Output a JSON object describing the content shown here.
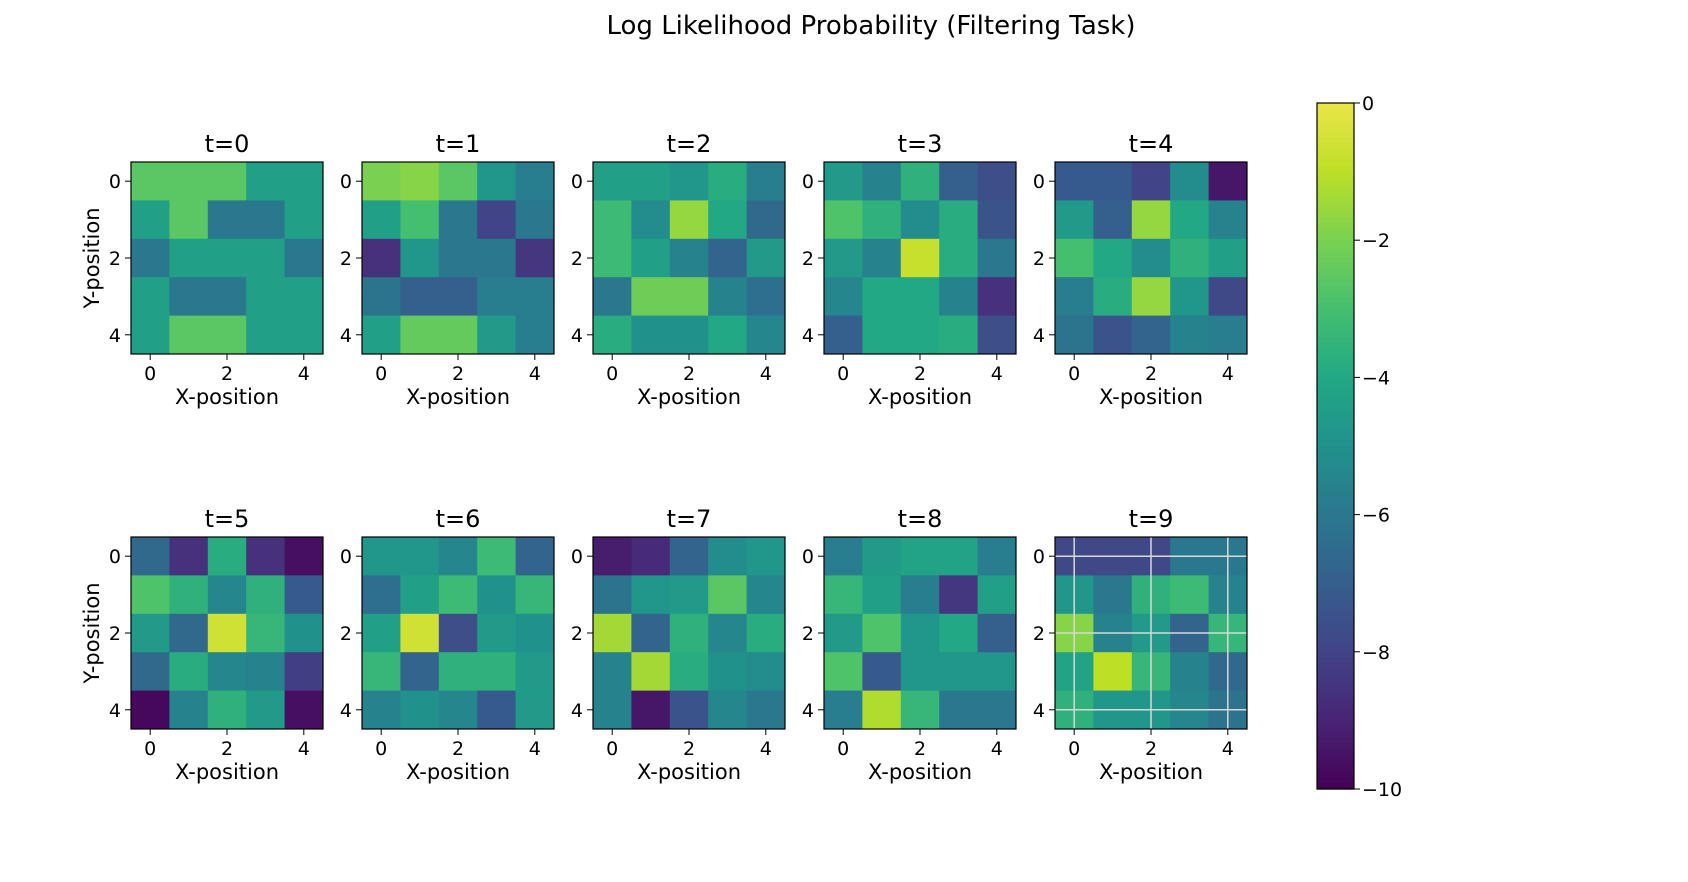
{
  "chart_data": {
    "type": "heatmap",
    "title": "Log Likelihood Probability (Filtering Task)",
    "xlabel": "X-position",
    "ylabel": "Y-position",
    "grid_shape": [
      5,
      5
    ],
    "x_ticks": [
      "0",
      "2",
      "4"
    ],
    "y_ticks": [
      "0",
      "2",
      "4"
    ],
    "colormap": "viridis",
    "vmin": -10,
    "vmax": 0,
    "colorbar_ticks": [
      0,
      -2,
      -4,
      -6,
      -8,
      -10
    ],
    "colorbar_tick_labels": [
      "0",
      "−2",
      "−4",
      "−6",
      "−8",
      "−10"
    ],
    "panels": [
      {
        "label": "t=0",
        "values": [
          [
            -2.6,
            -2.6,
            -2.6,
            -4.4,
            -4.4
          ],
          [
            -4.4,
            -2.6,
            -6.0,
            -6.0,
            -4.4
          ],
          [
            -6.0,
            -4.4,
            -4.4,
            -4.4,
            -6.0
          ],
          [
            -4.4,
            -6.0,
            -6.0,
            -4.4,
            -4.4
          ],
          [
            -4.4,
            -2.6,
            -2.6,
            -4.4,
            -4.4
          ]
        ]
      },
      {
        "label": "t=1",
        "values": [
          [
            -2.0,
            -1.8,
            -2.6,
            -4.8,
            -5.8
          ],
          [
            -4.4,
            -3.0,
            -6.0,
            -8.0,
            -6.0
          ],
          [
            -8.6,
            -4.8,
            -6.0,
            -6.0,
            -8.4
          ],
          [
            -6.2,
            -7.0,
            -7.0,
            -5.8,
            -5.8
          ],
          [
            -4.4,
            -2.4,
            -2.4,
            -4.6,
            -5.8
          ]
        ]
      },
      {
        "label": "t=2",
        "values": [
          [
            -4.4,
            -4.4,
            -4.8,
            -3.8,
            -5.8
          ],
          [
            -3.2,
            -5.2,
            -1.6,
            -4.0,
            -6.6
          ],
          [
            -3.2,
            -4.4,
            -5.6,
            -6.8,
            -4.6
          ],
          [
            -6.0,
            -2.2,
            -2.2,
            -5.6,
            -6.4
          ],
          [
            -3.8,
            -5.0,
            -5.0,
            -4.0,
            -5.4
          ]
        ]
      },
      {
        "label": "t=3",
        "values": [
          [
            -4.6,
            -5.6,
            -3.6,
            -7.0,
            -7.6
          ],
          [
            -2.8,
            -3.6,
            -5.2,
            -3.8,
            -7.4
          ],
          [
            -4.6,
            -5.6,
            -0.8,
            -3.8,
            -6.0
          ],
          [
            -5.4,
            -4.0,
            -4.0,
            -5.6,
            -8.6
          ],
          [
            -7.0,
            -4.0,
            -4.0,
            -3.8,
            -7.6
          ]
        ]
      },
      {
        "label": "t=4",
        "values": [
          [
            -7.2,
            -7.2,
            -8.0,
            -5.2,
            -9.4
          ],
          [
            -4.6,
            -7.0,
            -1.6,
            -4.0,
            -5.6
          ],
          [
            -3.0,
            -4.0,
            -5.2,
            -3.6,
            -4.4
          ],
          [
            -5.8,
            -3.8,
            -1.6,
            -4.8,
            -7.8
          ],
          [
            -6.2,
            -7.4,
            -6.8,
            -5.6,
            -5.8
          ]
        ]
      },
      {
        "label": "t=5",
        "values": [
          [
            -6.6,
            -8.6,
            -3.8,
            -8.6,
            -9.6
          ],
          [
            -2.8,
            -3.6,
            -5.4,
            -3.6,
            -7.2
          ],
          [
            -4.6,
            -6.6,
            -0.6,
            -3.4,
            -5.0
          ],
          [
            -6.6,
            -3.8,
            -5.4,
            -5.6,
            -8.2
          ],
          [
            -9.8,
            -5.6,
            -3.6,
            -4.6,
            -9.6
          ]
        ]
      },
      {
        "label": "t=6",
        "values": [
          [
            -4.8,
            -4.8,
            -5.4,
            -3.2,
            -6.8
          ],
          [
            -6.4,
            -4.4,
            -3.2,
            -5.0,
            -3.4
          ],
          [
            -4.4,
            -0.6,
            -7.6,
            -4.6,
            -5.0
          ],
          [
            -3.4,
            -6.8,
            -3.6,
            -3.6,
            -4.6
          ],
          [
            -5.6,
            -5.0,
            -5.4,
            -7.2,
            -4.6
          ]
        ]
      },
      {
        "label": "t=7",
        "values": [
          [
            -9.2,
            -8.8,
            -6.8,
            -5.2,
            -4.8
          ],
          [
            -6.2,
            -4.8,
            -4.6,
            -2.6,
            -5.4
          ],
          [
            -1.4,
            -6.8,
            -3.6,
            -5.4,
            -3.8
          ],
          [
            -5.6,
            -1.4,
            -3.8,
            -5.0,
            -5.2
          ],
          [
            -5.6,
            -9.4,
            -7.4,
            -5.4,
            -6.0
          ]
        ]
      },
      {
        "label": "t=8",
        "values": [
          [
            -5.8,
            -4.6,
            -4.2,
            -4.2,
            -5.8
          ],
          [
            -3.4,
            -4.4,
            -5.8,
            -8.4,
            -4.4
          ],
          [
            -4.6,
            -2.8,
            -4.8,
            -4.0,
            -7.0
          ],
          [
            -2.8,
            -7.2,
            -4.8,
            -4.8,
            -4.8
          ],
          [
            -5.8,
            -1.2,
            -3.4,
            -6.0,
            -6.0
          ]
        ]
      },
      {
        "label": "t=9",
        "values": [
          [
            -7.8,
            -7.8,
            -7.8,
            -6.0,
            -6.0
          ],
          [
            -4.8,
            -6.0,
            -3.6,
            -3.2,
            -5.6
          ],
          [
            -1.8,
            -5.6,
            -4.6,
            -6.8,
            -3.4
          ],
          [
            -4.2,
            -1.0,
            -3.4,
            -5.6,
            -6.6
          ],
          [
            -3.6,
            -4.8,
            -4.8,
            -5.4,
            -6.2
          ]
        ],
        "gridlines": true
      }
    ]
  }
}
